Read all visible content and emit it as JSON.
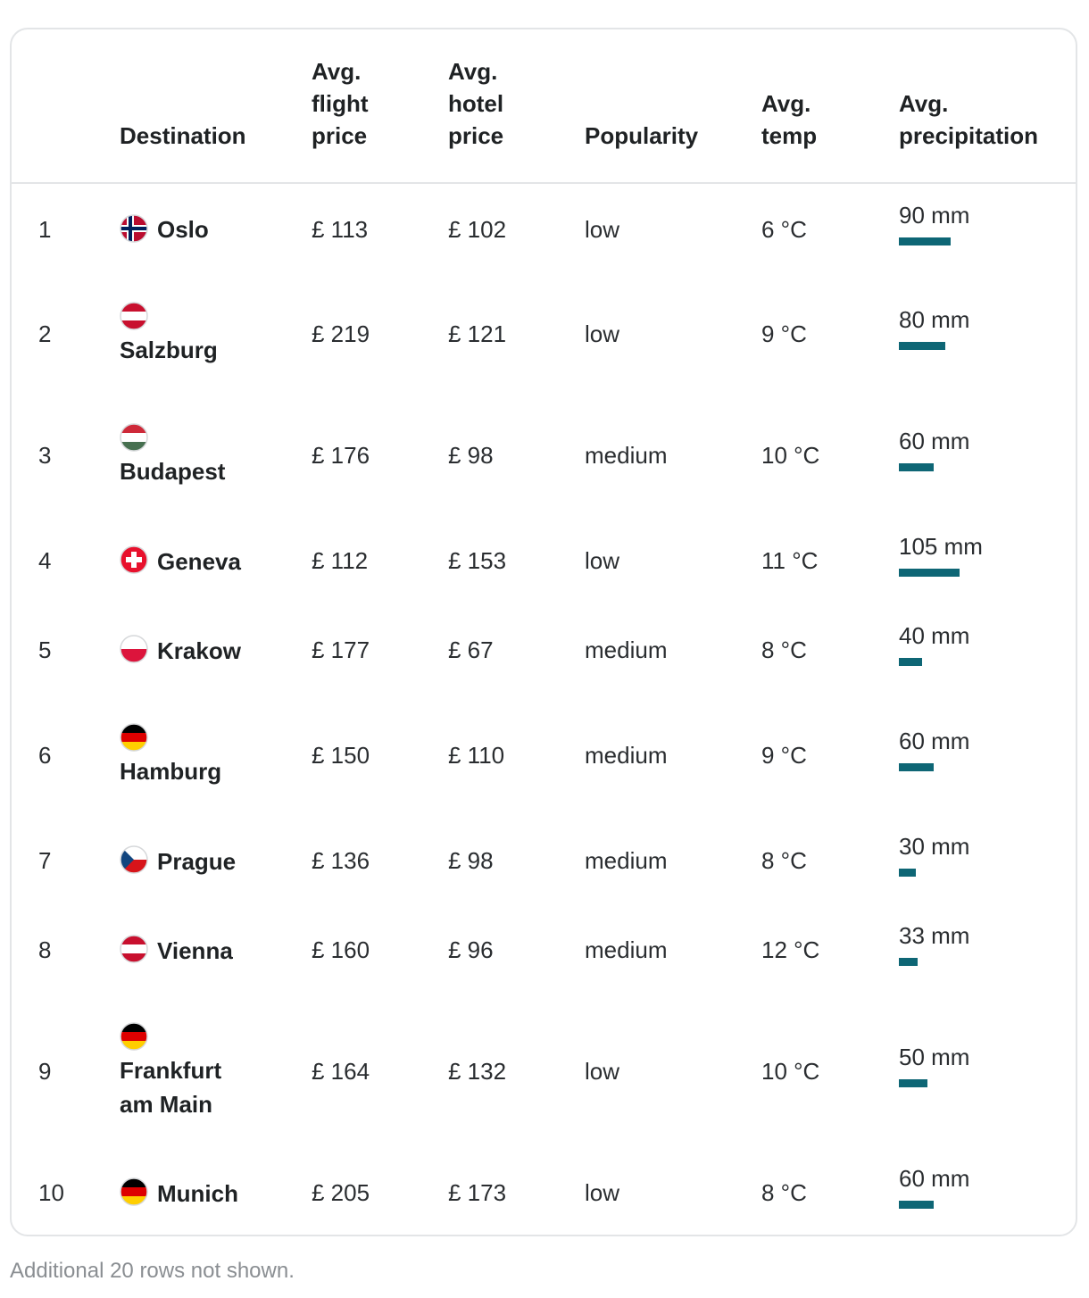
{
  "table": {
    "headers": {
      "rank": "",
      "destination": "Destination",
      "flight": [
        "Avg.",
        "flight",
        "price"
      ],
      "hotel": [
        "Avg.",
        "hotel",
        "price"
      ],
      "popularity": "Popularity",
      "temp": [
        "Avg.",
        "temp"
      ],
      "precipitation": [
        "Avg.",
        "precipitation"
      ]
    },
    "rows": [
      {
        "rank": "1",
        "destination": "Oslo",
        "flag": "norway-flag",
        "flight": "£ 113",
        "hotel": "£ 102",
        "popularity": "low",
        "temp": "6 °C",
        "precip": "90 mm",
        "precip_mm": 90
      },
      {
        "rank": "2",
        "destination": "Salzburg",
        "flag": "austria-flag",
        "flight": "£ 219",
        "hotel": "£ 121",
        "popularity": "low",
        "temp": "9 °C",
        "precip": "80 mm",
        "precip_mm": 80
      },
      {
        "rank": "3",
        "destination": "Budapest",
        "flag": "hungary-flag",
        "flight": "£ 176",
        "hotel": "£ 98",
        "popularity": "medium",
        "temp": "10 °C",
        "precip": "60 mm",
        "precip_mm": 60
      },
      {
        "rank": "4",
        "destination": "Geneva",
        "flag": "switzerland-flag",
        "flight": "£ 112",
        "hotel": "£ 153",
        "popularity": "low",
        "temp": "11 °C",
        "precip": "105 mm",
        "precip_mm": 105
      },
      {
        "rank": "5",
        "destination": "Krakow",
        "flag": "poland-flag",
        "flight": "£ 177",
        "hotel": "£ 67",
        "popularity": "medium",
        "temp": "8 °C",
        "precip": "40 mm",
        "precip_mm": 40
      },
      {
        "rank": "6",
        "destination": "Hamburg",
        "flag": "germany-flag",
        "flight": "£ 150",
        "hotel": "£ 110",
        "popularity": "medium",
        "temp": "9 °C",
        "precip": "60 mm",
        "precip_mm": 60
      },
      {
        "rank": "7",
        "destination": "Prague",
        "flag": "czechia-flag",
        "flight": "£ 136",
        "hotel": "£ 98",
        "popularity": "medium",
        "temp": "8 °C",
        "precip": "30 mm",
        "precip_mm": 30
      },
      {
        "rank": "8",
        "destination": "Vienna",
        "flag": "austria-flag",
        "flight": "£ 160",
        "hotel": "£ 96",
        "popularity": "medium",
        "temp": "12 °C",
        "precip": "33 mm",
        "precip_mm": 33
      },
      {
        "rank": "9",
        "destination": "Frankfurt am Main",
        "flag": "germany-flag",
        "flight": "£ 164",
        "hotel": "£ 132",
        "popularity": "low",
        "temp": "10 °C",
        "precip": "50 mm",
        "precip_mm": 50
      },
      {
        "rank": "10",
        "destination": "Munich",
        "flag": "germany-flag",
        "flight": "£ 205",
        "hotel": "£ 173",
        "popularity": "low",
        "temp": "8 °C",
        "precip": "60 mm",
        "precip_mm": 60
      }
    ]
  },
  "footer": {
    "note": "Additional 20 rows not shown."
  },
  "colors": {
    "precip_bar": "#0e6675",
    "border": "#e3e5e7"
  }
}
